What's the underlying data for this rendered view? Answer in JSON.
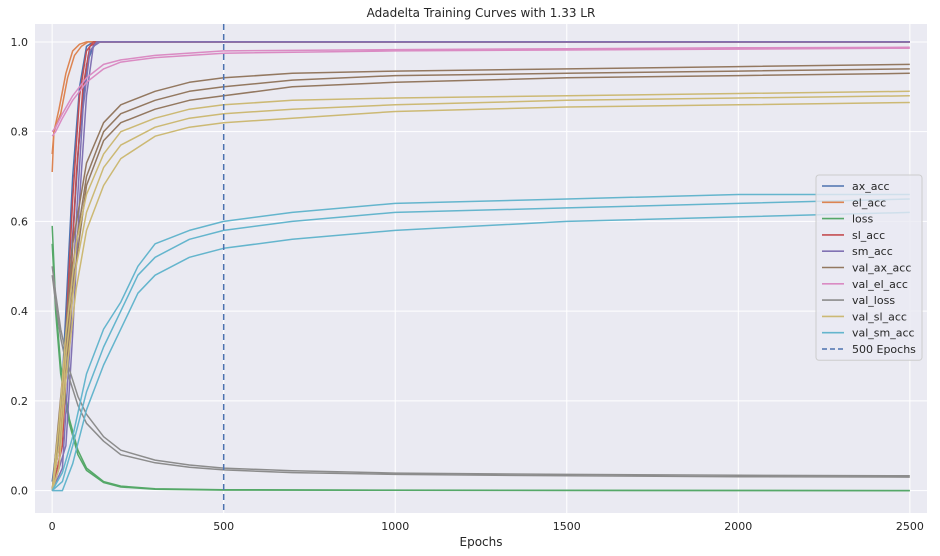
{
  "chart_data": {
    "type": "line",
    "title": "Adadelta Training Curves with 1.33 LR",
    "xlabel": "Epochs",
    "ylabel": "",
    "xlim": [
      -50,
      2550
    ],
    "ylim": [
      -0.05,
      1.04
    ],
    "x_ticks": [
      0,
      500,
      1000,
      1500,
      2000,
      2500
    ],
    "y_ticks": [
      0.0,
      0.2,
      0.4,
      0.6,
      0.8,
      1.0
    ],
    "grid": true,
    "background": "#eaeaf2",
    "legend_position": "center-right",
    "vline": {
      "x": 500,
      "label": "500 Epochs",
      "color": "#4c72b0",
      "style": "dashed"
    },
    "series": [
      {
        "name": "ax_acc",
        "color": "#4c72b0",
        "runs": [
          {
            "x": [
              0,
              20,
              40,
              60,
              80,
              100,
              120,
              2500
            ],
            "y": [
              0.0,
              0.1,
              0.4,
              0.7,
              0.9,
              0.99,
              1.0,
              1.0
            ]
          },
          {
            "x": [
              0,
              25,
              50,
              75,
              100,
              125,
              2500
            ],
            "y": [
              0.0,
              0.15,
              0.45,
              0.75,
              0.95,
              1.0,
              1.0
            ]
          },
          {
            "x": [
              0,
              30,
              55,
              80,
              105,
              130,
              2500
            ],
            "y": [
              0.02,
              0.2,
              0.5,
              0.8,
              0.97,
              1.0,
              1.0
            ]
          }
        ]
      },
      {
        "name": "el_acc",
        "color": "#dd8452",
        "runs": [
          {
            "x": [
              0,
              5,
              20,
              40,
              60,
              80,
              100,
              2500
            ],
            "y": [
              0.71,
              0.8,
              0.85,
              0.93,
              0.98,
              0.995,
              1.0,
              1.0
            ]
          },
          {
            "x": [
              0,
              5,
              25,
              45,
              65,
              85,
              105,
              2500
            ],
            "y": [
              0.75,
              0.8,
              0.84,
              0.92,
              0.97,
              0.99,
              1.0,
              1.0
            ]
          }
        ]
      },
      {
        "name": "loss",
        "color": "#55a868",
        "runs": [
          {
            "x": [
              0,
              10,
              25,
              50,
              75,
              100,
              150,
              200,
              300,
              500,
              1000,
              2500
            ],
            "y": [
              0.59,
              0.42,
              0.28,
              0.16,
              0.09,
              0.05,
              0.02,
              0.01,
              0.004,
              0.002,
              0.001,
              0.0
            ]
          },
          {
            "x": [
              0,
              10,
              25,
              50,
              75,
              100,
              150,
              200,
              300,
              500,
              1000,
              2500
            ],
            "y": [
              0.55,
              0.4,
              0.26,
              0.15,
              0.08,
              0.045,
              0.018,
              0.008,
              0.003,
              0.001,
              0.0005,
              0.0
            ]
          }
        ]
      },
      {
        "name": "sl_acc",
        "color": "#c44e52",
        "runs": [
          {
            "x": [
              0,
              20,
              40,
              60,
              80,
              100,
              120,
              2500
            ],
            "y": [
              0.0,
              0.05,
              0.35,
              0.65,
              0.88,
              0.98,
              1.0,
              1.0
            ]
          },
          {
            "x": [
              0,
              30,
              50,
              70,
              90,
              110,
              130,
              2500
            ],
            "y": [
              0.0,
              0.1,
              0.4,
              0.7,
              0.9,
              0.99,
              1.0,
              1.0
            ]
          }
        ]
      },
      {
        "name": "sm_acc",
        "color": "#8172b3",
        "runs": [
          {
            "x": [
              0,
              30,
              50,
              70,
              90,
              110,
              130,
              2500
            ],
            "y": [
              0.0,
              0.05,
              0.3,
              0.6,
              0.85,
              0.98,
              1.0,
              1.0
            ]
          },
          {
            "x": [
              0,
              40,
              60,
              80,
              100,
              120,
              140,
              2500
            ],
            "y": [
              0.0,
              0.1,
              0.35,
              0.65,
              0.88,
              0.99,
              1.0,
              1.0
            ]
          }
        ]
      },
      {
        "name": "val_ax_acc",
        "color": "#937860",
        "runs": [
          {
            "x": [
              0,
              30,
              60,
              100,
              150,
              200,
              300,
              400,
              500,
              700,
              1000,
              1500,
              2000,
              2500
            ],
            "y": [
              0.0,
              0.2,
              0.5,
              0.7,
              0.8,
              0.84,
              0.87,
              0.89,
              0.9,
              0.915,
              0.925,
              0.93,
              0.935,
              0.94
            ]
          },
          {
            "x": [
              0,
              30,
              60,
              100,
              150,
              200,
              300,
              400,
              500,
              700,
              1000,
              1500,
              2000,
              2500
            ],
            "y": [
              0.0,
              0.25,
              0.55,
              0.73,
              0.82,
              0.86,
              0.89,
              0.91,
              0.92,
              0.93,
              0.935,
              0.94,
              0.945,
              0.95
            ]
          },
          {
            "x": [
              0,
              30,
              60,
              100,
              150,
              200,
              300,
              400,
              500,
              700,
              1000,
              1500,
              2000,
              2500
            ],
            "y": [
              0.0,
              0.15,
              0.45,
              0.68,
              0.78,
              0.82,
              0.85,
              0.87,
              0.88,
              0.9,
              0.91,
              0.92,
              0.925,
              0.93
            ]
          }
        ]
      },
      {
        "name": "val_el_acc",
        "color": "#da8bc3",
        "runs": [
          {
            "x": [
              0,
              10,
              30,
              60,
              100,
              150,
              200,
              300,
              500,
              1000,
              1500,
              2000,
              2500
            ],
            "y": [
              0.8,
              0.81,
              0.84,
              0.88,
              0.92,
              0.95,
              0.96,
              0.97,
              0.98,
              0.983,
              0.985,
              0.987,
              0.988
            ]
          },
          {
            "x": [
              0,
              10,
              30,
              60,
              100,
              150,
              200,
              300,
              500,
              1000,
              1500,
              2000,
              2500
            ],
            "y": [
              0.79,
              0.8,
              0.83,
              0.87,
              0.91,
              0.94,
              0.955,
              0.965,
              0.975,
              0.98,
              0.982,
              0.984,
              0.986
            ]
          }
        ]
      },
      {
        "name": "val_loss",
        "color": "#8c8c8c",
        "runs": [
          {
            "x": [
              0,
              10,
              25,
              50,
              75,
              100,
              150,
              200,
              300,
              400,
              500,
              700,
              1000,
              1500,
              2000,
              2500
            ],
            "y": [
              0.5,
              0.44,
              0.36,
              0.27,
              0.21,
              0.17,
              0.12,
              0.09,
              0.068,
              0.057,
              0.05,
              0.044,
              0.039,
              0.036,
              0.034,
              0.033
            ]
          },
          {
            "x": [
              0,
              10,
              25,
              50,
              75,
              100,
              150,
              200,
              300,
              400,
              500,
              700,
              1000,
              1500,
              2000,
              2500
            ],
            "y": [
              0.48,
              0.42,
              0.34,
              0.25,
              0.19,
              0.15,
              0.11,
              0.08,
              0.062,
              0.052,
              0.046,
              0.04,
              0.036,
              0.033,
              0.031,
              0.03
            ]
          }
        ]
      },
      {
        "name": "val_sl_acc",
        "color": "#ccb974",
        "runs": [
          {
            "x": [
              0,
              20,
              40,
              70,
              100,
              150,
              200,
              300,
              400,
              500,
              700,
              1000,
              1500,
              2000,
              2500
            ],
            "y": [
              0.0,
              0.1,
              0.3,
              0.5,
              0.62,
              0.72,
              0.77,
              0.81,
              0.83,
              0.84,
              0.85,
              0.86,
              0.87,
              0.875,
              0.88
            ]
          },
          {
            "x": [
              0,
              20,
              40,
              70,
              100,
              150,
              200,
              300,
              400,
              500,
              700,
              1000,
              1500,
              2000,
              2500
            ],
            "y": [
              0.0,
              0.15,
              0.35,
              0.55,
              0.66,
              0.75,
              0.8,
              0.83,
              0.85,
              0.86,
              0.87,
              0.875,
              0.88,
              0.885,
              0.89
            ]
          },
          {
            "x": [
              0,
              20,
              40,
              70,
              100,
              150,
              200,
              300,
              400,
              500,
              700,
              1000,
              1500,
              2000,
              2500
            ],
            "y": [
              0.0,
              0.05,
              0.25,
              0.45,
              0.58,
              0.68,
              0.74,
              0.79,
              0.81,
              0.82,
              0.83,
              0.845,
              0.855,
              0.86,
              0.865
            ]
          }
        ]
      },
      {
        "name": "val_sm_acc",
        "color": "#64b5cd",
        "runs": [
          {
            "x": [
              0,
              30,
              60,
              100,
              150,
              200,
              250,
              300,
              400,
              500,
              700,
              1000,
              1500,
              2000,
              2500
            ],
            "y": [
              0.0,
              0.02,
              0.1,
              0.22,
              0.32,
              0.4,
              0.48,
              0.52,
              0.56,
              0.58,
              0.6,
              0.62,
              0.63,
              0.64,
              0.65
            ]
          },
          {
            "x": [
              0,
              30,
              60,
              100,
              150,
              200,
              250,
              300,
              400,
              500,
              700,
              1000,
              1500,
              2000,
              2500
            ],
            "y": [
              0.0,
              0.0,
              0.06,
              0.18,
              0.28,
              0.36,
              0.44,
              0.48,
              0.52,
              0.54,
              0.56,
              0.58,
              0.6,
              0.61,
              0.62
            ]
          },
          {
            "x": [
              0,
              30,
              60,
              100,
              150,
              200,
              250,
              300,
              400,
              500,
              700,
              1000,
              1500,
              2000,
              2500
            ],
            "y": [
              0.0,
              0.04,
              0.12,
              0.26,
              0.36,
              0.42,
              0.5,
              0.55,
              0.58,
              0.6,
              0.62,
              0.64,
              0.65,
              0.66,
              0.66
            ]
          }
        ]
      }
    ]
  }
}
